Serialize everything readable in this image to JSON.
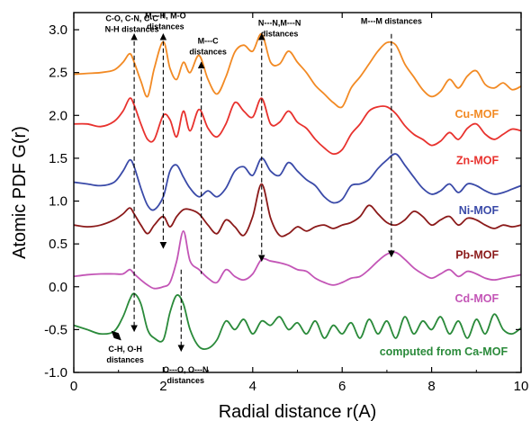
{
  "chart_data": {
    "type": "line",
    "title": "",
    "xlabel": "Radial distance r(A)",
    "ylabel": "Atomic PDF G(r)",
    "xlim": [
      0,
      10
    ],
    "ylim": [
      -1.0,
      3.2
    ],
    "x_ticks": [
      0,
      2,
      4,
      6,
      8,
      10
    ],
    "x_tick_labels": [
      "0",
      "2",
      "4",
      "6",
      "8",
      "10"
    ],
    "y_ticks": [
      -1.0,
      -0.5,
      0.0,
      0.5,
      1.0,
      1.5,
      2.0,
      2.5,
      3.0
    ],
    "y_tick_labels": [
      "-1.0",
      "-0.5",
      "0.0",
      "0.5",
      "1.0",
      "1.5",
      "2.0",
      "2.5",
      "3.0"
    ],
    "grid": false,
    "legend": "labels beside curves, right side",
    "series": [
      {
        "name": "Cu-MOF",
        "color": "#f28a24",
        "x": [
          0.0,
          0.3,
          0.6,
          0.9,
          1.1,
          1.25,
          1.35,
          1.5,
          1.65,
          1.8,
          2.0,
          2.15,
          2.3,
          2.45,
          2.6,
          2.8,
          3.0,
          3.2,
          3.4,
          3.6,
          3.8,
          4.0,
          4.2,
          4.4,
          4.6,
          4.8,
          5.0,
          5.2,
          5.4,
          5.6,
          5.8,
          6.0,
          6.2,
          6.4,
          6.6,
          6.8,
          7.0,
          7.2,
          7.4,
          7.6,
          7.8,
          8.0,
          8.2,
          8.4,
          8.6,
          8.8,
          9.0,
          9.2,
          9.4,
          9.6,
          9.8,
          10.0
        ],
        "y": [
          2.48,
          2.49,
          2.5,
          2.53,
          2.62,
          2.72,
          2.62,
          2.4,
          2.22,
          2.55,
          2.86,
          2.55,
          2.42,
          2.62,
          2.5,
          2.7,
          2.42,
          2.25,
          2.45,
          2.74,
          2.82,
          2.75,
          2.95,
          2.62,
          2.6,
          2.75,
          2.62,
          2.5,
          2.35,
          2.25,
          2.15,
          2.1,
          2.32,
          2.45,
          2.6,
          2.75,
          2.85,
          2.82,
          2.6,
          2.45,
          2.3,
          2.22,
          2.28,
          2.42,
          2.32,
          2.46,
          2.52,
          2.36,
          2.32,
          2.38,
          2.3,
          2.34
        ]
      },
      {
        "name": "Zn-MOF",
        "color": "#e8322e",
        "x": [
          0.0,
          0.3,
          0.6,
          0.9,
          1.1,
          1.25,
          1.35,
          1.5,
          1.65,
          1.8,
          2.0,
          2.15,
          2.3,
          2.45,
          2.6,
          2.8,
          3.0,
          3.2,
          3.4,
          3.6,
          3.8,
          4.0,
          4.2,
          4.4,
          4.6,
          4.8,
          5.0,
          5.2,
          5.4,
          5.6,
          5.8,
          6.0,
          6.2,
          6.4,
          6.6,
          6.8,
          7.0,
          7.2,
          7.4,
          7.6,
          7.8,
          8.0,
          8.2,
          8.4,
          8.6,
          8.8,
          9.0,
          9.2,
          9.4,
          9.6,
          9.8,
          10.0
        ],
        "y": [
          1.9,
          1.9,
          1.87,
          1.93,
          2.05,
          2.2,
          2.12,
          1.9,
          1.72,
          1.72,
          2.0,
          1.95,
          1.75,
          2.05,
          1.82,
          2.07,
          1.85,
          1.75,
          1.9,
          2.15,
          2.05,
          1.98,
          2.2,
          1.9,
          1.92,
          2.05,
          1.92,
          1.85,
          1.72,
          1.62,
          1.55,
          1.6,
          1.78,
          1.9,
          2.05,
          2.1,
          2.1,
          2.02,
          1.88,
          1.78,
          1.72,
          1.65,
          1.7,
          1.8,
          1.72,
          1.85,
          1.9,
          1.78,
          1.72,
          1.78,
          1.84,
          1.82
        ]
      },
      {
        "name": "Ni-MOF",
        "color": "#3a4aa8",
        "x": [
          0.0,
          0.3,
          0.6,
          0.9,
          1.1,
          1.25,
          1.35,
          1.5,
          1.65,
          1.8,
          2.0,
          2.15,
          2.3,
          2.45,
          2.6,
          2.8,
          3.0,
          3.2,
          3.4,
          3.6,
          3.8,
          4.0,
          4.2,
          4.4,
          4.6,
          4.8,
          5.0,
          5.2,
          5.4,
          5.6,
          5.8,
          6.0,
          6.2,
          6.4,
          6.6,
          6.8,
          7.0,
          7.2,
          7.4,
          7.6,
          7.8,
          8.0,
          8.2,
          8.4,
          8.6,
          8.8,
          9.0,
          9.2,
          9.4,
          9.6,
          9.8,
          10.0
        ],
        "y": [
          1.22,
          1.2,
          1.18,
          1.22,
          1.35,
          1.48,
          1.4,
          1.15,
          0.95,
          0.9,
          1.05,
          1.35,
          1.42,
          1.28,
          1.15,
          1.05,
          1.12,
          1.05,
          1.15,
          1.35,
          1.4,
          1.3,
          1.5,
          1.35,
          1.3,
          1.45,
          1.35,
          1.25,
          1.18,
          1.05,
          0.98,
          1.02,
          1.18,
          1.2,
          1.25,
          1.38,
          1.48,
          1.55,
          1.42,
          1.28,
          1.15,
          1.08,
          1.12,
          1.2,
          1.1,
          1.2,
          1.18,
          1.12,
          1.08,
          1.1,
          1.14,
          1.18
        ]
      },
      {
        "name": "Pb-MOF",
        "color": "#8b1a1a",
        "x": [
          0.0,
          0.3,
          0.6,
          0.9,
          1.1,
          1.25,
          1.35,
          1.5,
          1.65,
          1.8,
          2.0,
          2.15,
          2.3,
          2.45,
          2.6,
          2.8,
          3.0,
          3.2,
          3.4,
          3.6,
          3.8,
          4.0,
          4.2,
          4.4,
          4.6,
          4.8,
          5.0,
          5.2,
          5.4,
          5.6,
          5.8,
          6.0,
          6.2,
          6.4,
          6.6,
          6.8,
          7.0,
          7.2,
          7.4,
          7.6,
          7.8,
          8.0,
          8.2,
          8.4,
          8.6,
          8.8,
          9.0,
          9.2,
          9.4,
          9.6,
          9.8,
          10.0
        ],
        "y": [
          0.72,
          0.7,
          0.72,
          0.78,
          0.85,
          0.92,
          0.85,
          0.72,
          0.62,
          0.72,
          0.82,
          0.7,
          0.82,
          0.9,
          0.9,
          0.85,
          0.72,
          0.62,
          0.78,
          0.7,
          0.6,
          0.82,
          1.2,
          0.8,
          0.6,
          0.62,
          0.7,
          0.65,
          0.7,
          0.72,
          0.68,
          0.72,
          0.75,
          0.82,
          0.95,
          0.85,
          0.75,
          0.72,
          0.78,
          0.88,
          0.82,
          0.72,
          0.78,
          0.82,
          0.72,
          0.8,
          0.78,
          0.72,
          0.68,
          0.72,
          0.7,
          0.72
        ]
      },
      {
        "name": "Cd-MOF",
        "color": "#c355b6",
        "x": [
          0.0,
          0.3,
          0.6,
          0.9,
          1.1,
          1.25,
          1.35,
          1.5,
          1.65,
          1.8,
          2.0,
          2.15,
          2.3,
          2.45,
          2.6,
          2.8,
          3.0,
          3.2,
          3.4,
          3.6,
          3.8,
          4.0,
          4.2,
          4.4,
          4.6,
          4.8,
          5.0,
          5.2,
          5.4,
          5.6,
          5.8,
          6.0,
          6.2,
          6.4,
          6.6,
          6.8,
          7.0,
          7.2,
          7.4,
          7.6,
          7.8,
          8.0,
          8.2,
          8.4,
          8.6,
          8.8,
          9.0,
          9.2,
          9.4,
          9.6,
          9.8,
          10.0
        ],
        "y": [
          0.12,
          0.14,
          0.15,
          0.15,
          0.15,
          0.2,
          0.15,
          0.08,
          0.02,
          -0.02,
          0.0,
          0.05,
          0.3,
          0.65,
          0.3,
          0.2,
          0.1,
          0.05,
          0.2,
          0.12,
          0.08,
          0.15,
          0.32,
          0.3,
          0.28,
          0.25,
          0.2,
          0.18,
          0.1,
          0.05,
          0.02,
          0.05,
          0.1,
          0.12,
          0.2,
          0.3,
          0.38,
          0.4,
          0.32,
          0.22,
          0.15,
          0.1,
          0.15,
          0.2,
          0.12,
          0.18,
          0.15,
          0.1,
          0.08,
          0.1,
          0.12,
          0.14
        ]
      },
      {
        "name": "computed from Ca-MOF",
        "color": "#2a8a3a",
        "x": [
          0.0,
          0.3,
          0.6,
          0.9,
          1.1,
          1.25,
          1.35,
          1.5,
          1.65,
          1.8,
          2.0,
          2.15,
          2.3,
          2.45,
          2.6,
          2.8,
          3.0,
          3.2,
          3.4,
          3.6,
          3.8,
          4.0,
          4.2,
          4.4,
          4.6,
          4.8,
          5.0,
          5.2,
          5.4,
          5.6,
          5.8,
          6.0,
          6.2,
          6.4,
          6.6,
          6.8,
          7.0,
          7.2,
          7.4,
          7.6,
          7.8,
          8.0,
          8.2,
          8.4,
          8.6,
          8.8,
          9.0,
          9.2,
          9.4,
          9.6,
          9.8,
          10.0
        ],
        "y": [
          -0.45,
          -0.5,
          -0.55,
          -0.52,
          -0.35,
          -0.15,
          -0.08,
          -0.2,
          -0.5,
          -0.6,
          -0.62,
          -0.3,
          -0.1,
          -0.2,
          -0.5,
          -0.7,
          -0.72,
          -0.62,
          -0.4,
          -0.5,
          -0.38,
          -0.55,
          -0.4,
          -0.45,
          -0.35,
          -0.5,
          -0.42,
          -0.55,
          -0.4,
          -0.6,
          -0.45,
          -0.55,
          -0.42,
          -0.6,
          -0.38,
          -0.55,
          -0.4,
          -0.6,
          -0.35,
          -0.55,
          -0.4,
          -0.5,
          -0.35,
          -0.55,
          -0.4,
          -0.6,
          -0.38,
          -0.55,
          -0.32,
          -0.5,
          -0.55,
          -0.48
        ]
      }
    ],
    "annotations": [
      {
        "lines": [
          "C-O, C-N, C-C",
          "N-H distances"
        ],
        "x": 1.35,
        "y_from": 2.95,
        "y_to": -0.52,
        "direction": "both"
      },
      {
        "lines": [
          "M---H, M-O",
          "distances"
        ],
        "x": 2.0,
        "y_from": 2.95,
        "y_to": 0.45,
        "direction": "both"
      },
      {
        "lines": [
          "M---C",
          "distances"
        ],
        "x": 2.85,
        "y_from": 2.62,
        "y_to": 0.15,
        "direction": "up"
      },
      {
        "lines": [
          "N---N,M---N",
          "distances"
        ],
        "x": 4.2,
        "y_from": 2.95,
        "y_to": 0.3,
        "direction": "both"
      },
      {
        "lines": [
          "M---M distances"
        ],
        "x": 7.1,
        "y_from": 2.95,
        "y_to": 0.35,
        "direction": "down"
      },
      {
        "lines": [
          "C-H, O-H",
          "distances"
        ],
        "x": 0.95,
        "y_from": -0.58,
        "y_to": -0.58,
        "direction": "small"
      },
      {
        "lines": [
          "O---O, O---N",
          "distances"
        ],
        "x": 2.4,
        "y_from": 0.2,
        "y_to": -0.75,
        "direction": "down"
      }
    ]
  }
}
